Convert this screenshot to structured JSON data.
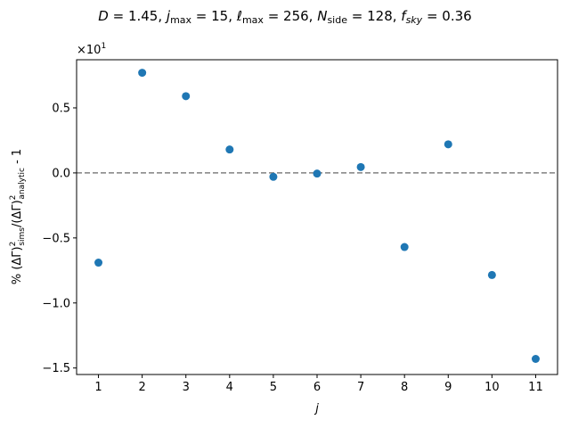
{
  "chart_data": {
    "type": "scatter",
    "title_parts": {
      "d_sym": "D",
      "d_val": " = 1.45,  ",
      "j_sym": "j",
      "j_sub": "max",
      "j_val": " = 15,  ",
      "l_sym": "ℓ",
      "l_sub": "max",
      "l_val": " = 256,  ",
      "n_sym": "N",
      "n_sub": "side",
      "n_val": " = 128,  ",
      "f_sym": "f",
      "f_sub": "sky",
      "f_val": " = 0.36"
    },
    "xlabel": "j",
    "ylabel_parts": {
      "prefix": "% (ΔΓ)",
      "sup1": "2",
      "sub1": "sims",
      "mid": "/(ΔΓ)",
      "sup2": "2",
      "sub2": "analytic",
      "suffix": " - 1"
    },
    "offset_text": {
      "base": "×10",
      "exp": "1"
    },
    "x_ticks": [
      1,
      2,
      3,
      4,
      5,
      6,
      7,
      8,
      9,
      10,
      11
    ],
    "y_ticks": [
      0.5,
      0.0,
      -0.5,
      -1.0,
      -1.5
    ],
    "y_tick_labels": [
      "0.5",
      "0.0",
      "−0.5",
      "−1.0",
      "−1.5"
    ],
    "xlim": [
      0.5,
      11.5
    ],
    "ylim": [
      -1.55,
      0.87
    ],
    "reference_line": {
      "y": 0,
      "style": "dashed",
      "color": "#808080"
    },
    "marker_color": "#1f77b4",
    "points": [
      {
        "x": 1,
        "y": -0.69
      },
      {
        "x": 2,
        "y": 0.77
      },
      {
        "x": 3,
        "y": 0.59
      },
      {
        "x": 4,
        "y": 0.18
      },
      {
        "x": 5,
        "y": -0.03
      },
      {
        "x": 6,
        "y": -0.005
      },
      {
        "x": 7,
        "y": 0.045
      },
      {
        "x": 8,
        "y": -0.57
      },
      {
        "x": 9,
        "y": 0.22
      },
      {
        "x": 10,
        "y": -0.785
      },
      {
        "x": 11,
        "y": -1.43
      }
    ]
  }
}
